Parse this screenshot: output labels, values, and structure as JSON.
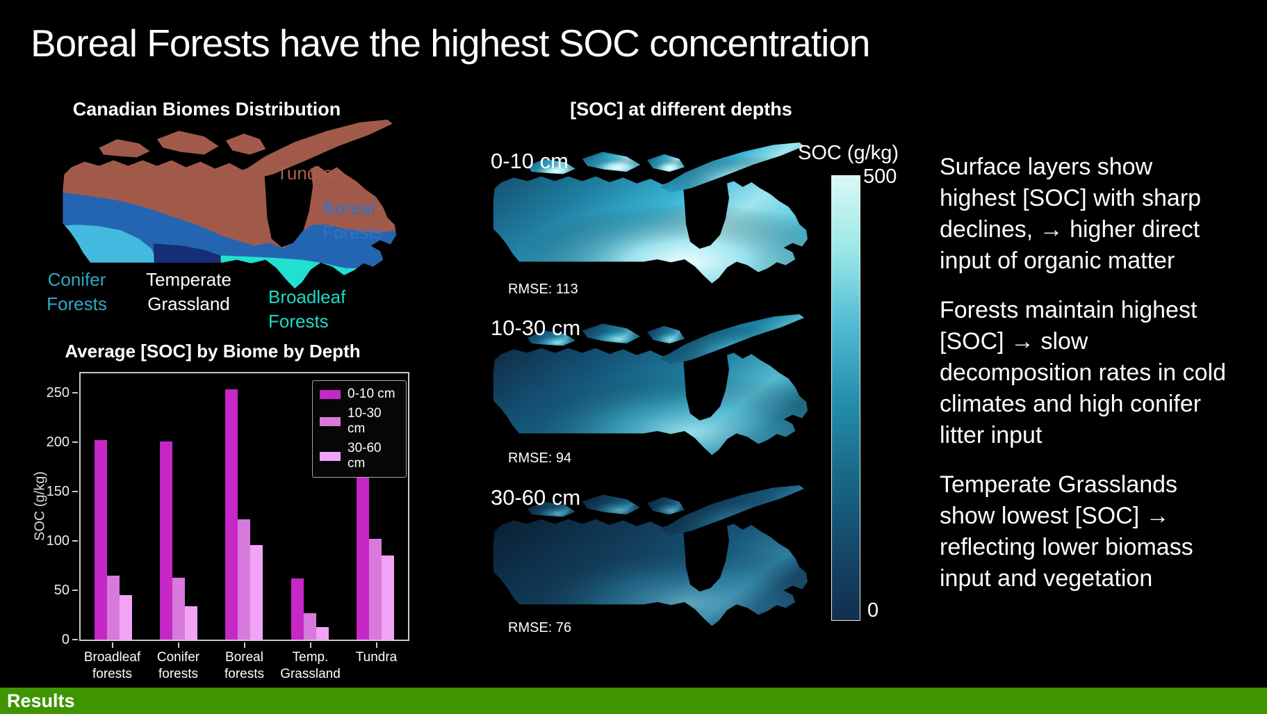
{
  "slide": {
    "title": "Boreal Forests have the highest SOC concentration",
    "footer": {
      "label": "Results",
      "bg_color": "#3E9500"
    }
  },
  "biome_map": {
    "title": "Canadian Biomes Distribution",
    "regions": [
      {
        "name": "Tundra",
        "fill": "#A15A4A",
        "label_color": "#AD5F4C"
      },
      {
        "name": "Boreal Forests",
        "fill": "#2465B2",
        "label_color": "#2E74C4"
      },
      {
        "name": "Conifer Forests",
        "fill": "#43BADF",
        "label_color": "#2FA8C8"
      },
      {
        "name": "Temperate Grassland",
        "fill": "#152E75",
        "label_color": "#FFFFFF"
      },
      {
        "name": "Broadleaf Forests",
        "fill": "#21E0CF",
        "label_color": "#1FD9C6"
      }
    ]
  },
  "chart_data": {
    "type": "bar",
    "title": "Average [SOC] by Biome by Depth",
    "categories": [
      "Broadleaf forests",
      "Conifer forests",
      "Boreal forests",
      "Temp. Grassland",
      "Tundra"
    ],
    "series": [
      {
        "name": "0-10 cm",
        "color": "#C528C6",
        "values": [
          202,
          201,
          254,
          62,
          186
        ]
      },
      {
        "name": "10-30 cm",
        "color": "#D87ADB",
        "values": [
          65,
          63,
          122,
          27,
          102
        ]
      },
      {
        "name": "30-60 cm",
        "color": "#F2A3F7",
        "values": [
          45,
          34,
          96,
          13,
          85
        ]
      }
    ],
    "xlabel": "",
    "ylabel": "SOC (g/kg)",
    "yticks": [
      0,
      50,
      100,
      150,
      200,
      250
    ],
    "ylim": [
      0,
      270
    ],
    "legend_position": "upper right",
    "grid": false
  },
  "depth_maps": {
    "title": "[SOC] at different depths",
    "items": [
      {
        "depth": "0-10 cm",
        "rmse": "RMSE: 113"
      },
      {
        "depth": "10-30 cm",
        "rmse": "RMSE: 94"
      },
      {
        "depth": "30-60 cm",
        "rmse": "RMSE: 76"
      }
    ],
    "colorbar": {
      "title": "SOC (g/kg)",
      "max_label": "500",
      "min_label": "0",
      "stops": [
        "#DAF8F5",
        "#9AE8E6",
        "#52BCD4",
        "#2490AD",
        "#196A88",
        "#15496B",
        "#132E4D"
      ]
    }
  },
  "findings": {
    "paragraphs": [
      "Surface layers show highest [SOC] with sharp declines, → higher direct input of organic matter",
      "Forests maintain highest [SOC] → slow decomposition rates in cold climates and high conifer litter input",
      "Temperate Grasslands show lowest [SOC] → reflecting lower biomass input and vegetation"
    ]
  }
}
